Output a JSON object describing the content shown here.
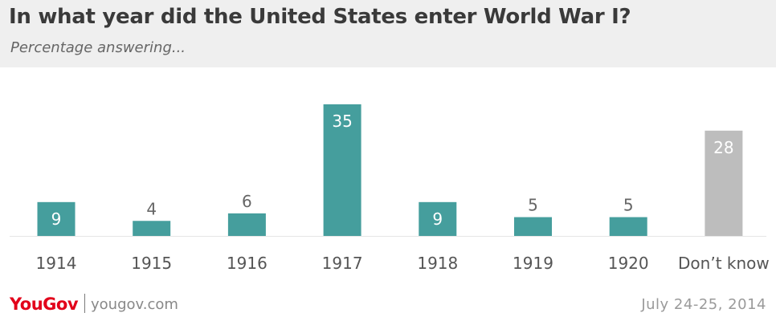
{
  "chart_data": {
    "type": "bar",
    "title": "In what year did the United States enter World War I?",
    "subtitle": "Percentage answering...",
    "categories": [
      "1914",
      "1915",
      "1916",
      "1917",
      "1918",
      "1919",
      "1920",
      "Don’t know"
    ],
    "values": [
      9,
      4,
      6,
      35,
      9,
      5,
      5,
      28
    ],
    "bar_colors": [
      "#459e9d",
      "#459e9d",
      "#459e9d",
      "#459e9d",
      "#459e9d",
      "#459e9d",
      "#459e9d",
      "#bdbdbd"
    ],
    "label_inside": [
      true,
      false,
      false,
      true,
      true,
      false,
      false,
      true
    ],
    "ylim": [
      0,
      35
    ],
    "grid": false,
    "legend": "none"
  },
  "footer": {
    "brand": "YouGov",
    "site": "yougov.com",
    "date": "July 24-25, 2014"
  },
  "colors": {
    "accent": "#459e9d",
    "neutral_bar": "#bdbdbd",
    "brand_red": "#e2001a"
  }
}
